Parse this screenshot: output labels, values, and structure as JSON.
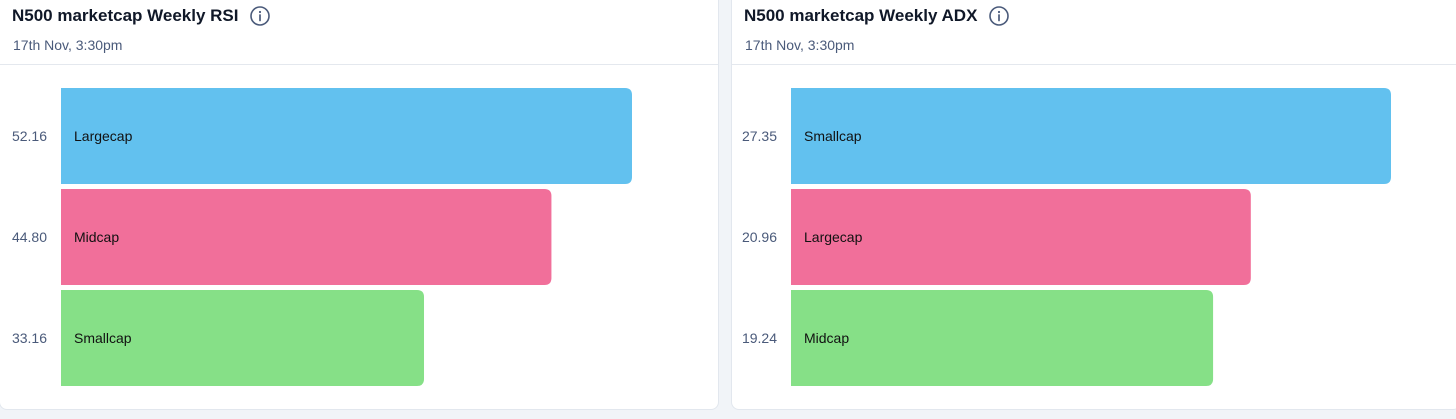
{
  "colors": {
    "bar_1": "#62c1ef",
    "bar_2": "#f16f9a",
    "bar_3": "#86e087",
    "value_text": "#4a5a7a",
    "title_text": "#101828"
  },
  "icons": {
    "info": "info-circle-icon"
  },
  "cards": [
    {
      "title": "N500 marketcap Weekly RSI",
      "subtitle": "17th Nov, 3:30pm"
    },
    {
      "title": "N500 marketcap Weekly ADX",
      "subtitle": "17th Nov, 3:30pm"
    }
  ],
  "chart_data": [
    {
      "type": "bar",
      "orientation": "horizontal",
      "title": "N500 marketcap Weekly RSI",
      "categories": [
        "Largecap",
        "Midcap",
        "Smallcap"
      ],
      "values": [
        52.16,
        44.8,
        33.16
      ],
      "value_labels": [
        "52.16",
        "44.80",
        "33.16"
      ],
      "value_label_position": "left",
      "grid": false,
      "legend": "none"
    },
    {
      "type": "bar",
      "orientation": "horizontal",
      "title": "N500 marketcap Weekly ADX",
      "categories": [
        "Smallcap",
        "Largecap",
        "Midcap"
      ],
      "values": [
        27.35,
        20.96,
        19.24
      ],
      "value_labels": [
        "27.35",
        "20.96",
        "19.24"
      ],
      "value_label_position": "left",
      "grid": false,
      "legend": "none"
    }
  ]
}
